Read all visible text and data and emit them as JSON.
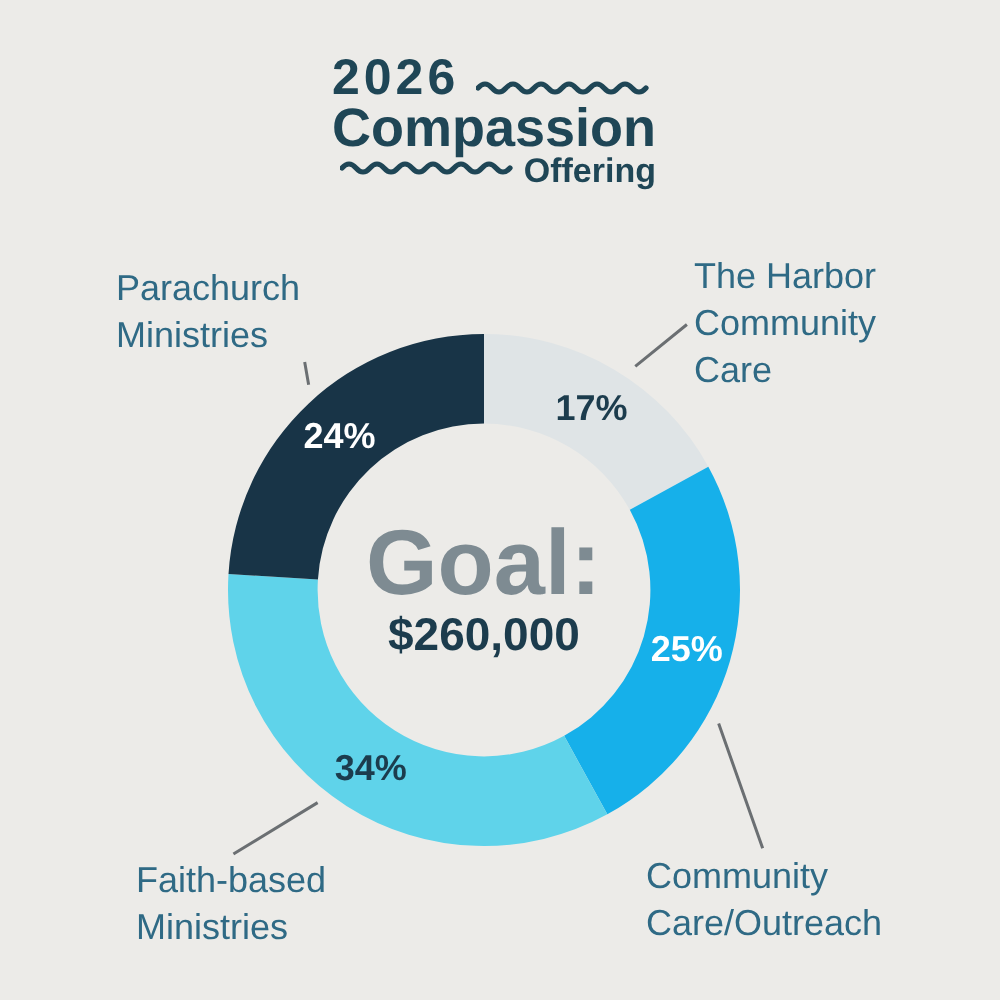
{
  "chart_data": {
    "type": "donut",
    "title": "2026 Compassion Offering",
    "categories": [
      "The Harbor Community Care",
      "Community Care/Outreach",
      "Faith-based Ministries",
      "Parachurch Ministries"
    ],
    "values": [
      17,
      25,
      34,
      24
    ],
    "colors": [
      "#dfe4e6",
      "#16b0ea",
      "#5fd3ea",
      "#183447"
    ],
    "value_labels": [
      "17%",
      "25%",
      "34%",
      "24%"
    ],
    "annotations": [
      "Goal:",
      "$260,000"
    ]
  }
}
